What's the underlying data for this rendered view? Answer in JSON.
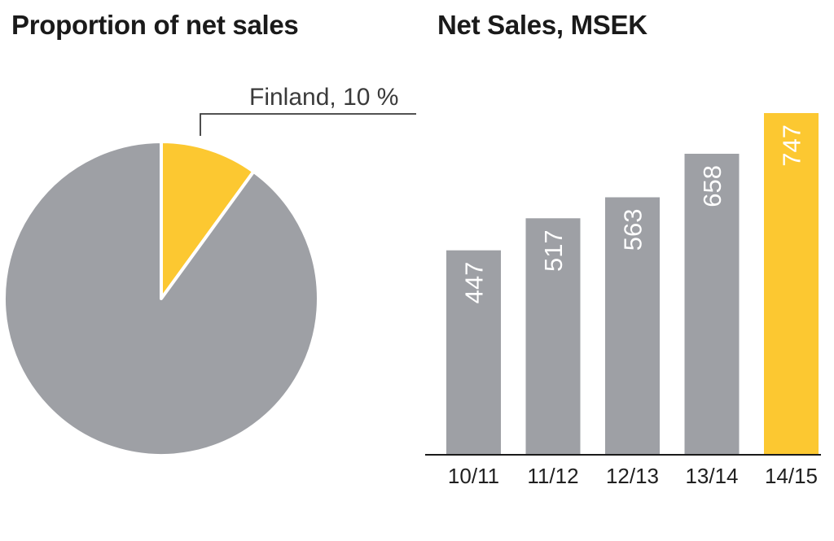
{
  "chart_data": [
    {
      "type": "pie",
      "title": "Proportion of net sales",
      "slices": [
        {
          "label": "Finland",
          "value": 10,
          "color": "#fcc831"
        },
        {
          "label": "",
          "value": 90,
          "color": "#9ea0a5"
        }
      ],
      "callout": "Finland, 10 %",
      "start_angle_deg": 0,
      "separator_color": "#ffffff"
    },
    {
      "type": "bar",
      "title": "Net Sales, MSEK",
      "categories": [
        "10/11",
        "11/12",
        "12/13",
        "13/14",
        "14/15"
      ],
      "values": [
        447,
        517,
        563,
        658,
        747
      ],
      "colors": [
        "#9ea0a5",
        "#9ea0a5",
        "#9ea0a5",
        "#9ea0a5",
        "#fcc831"
      ],
      "ylim": [
        0,
        747
      ],
      "grid": false,
      "data_labels": "inside-rotated"
    }
  ]
}
